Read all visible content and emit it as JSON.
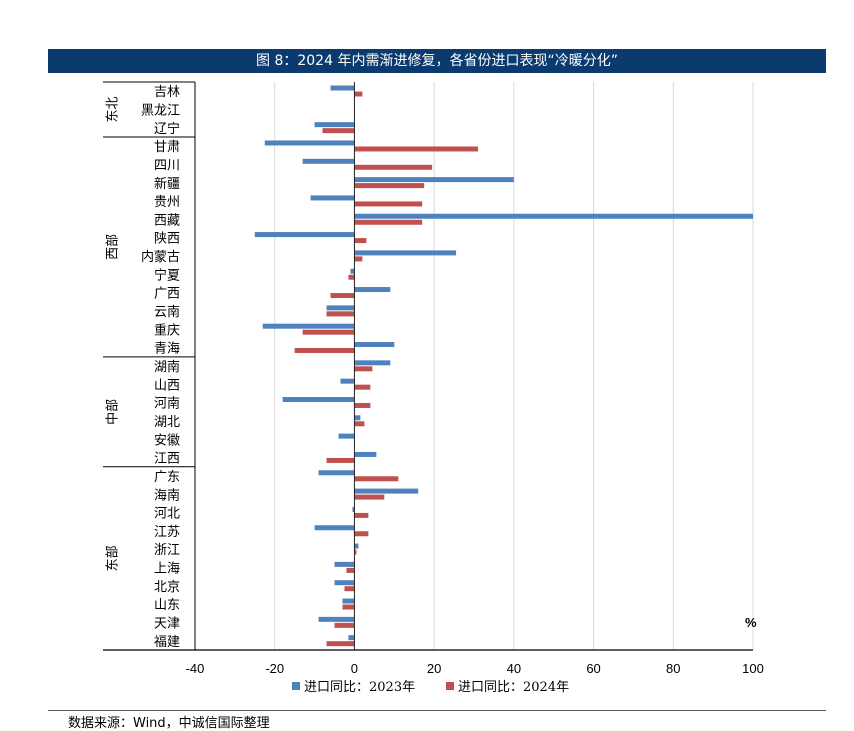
{
  "chart_data": {
    "type": "bar",
    "orientation": "horizontal",
    "title": "图 8：2024 年内需渐进修复，各省份进口表现“冷暖分化”",
    "unit_label": "%",
    "xlim": [
      -40,
      100
    ],
    "xticks": [
      "-40",
      "-20",
      "0",
      "20",
      "40",
      "60",
      "80",
      "100"
    ],
    "gridlines": true,
    "legend_position": "bottom",
    "series": [
      {
        "name": "进口同比：2023年",
        "color": "#4f81bd"
      },
      {
        "name": "进口同比：2024年",
        "color": "#c0504d"
      }
    ],
    "groups": [
      {
        "name": "东北",
        "provinces": [
          {
            "name": "吉林",
            "v2023": -6,
            "v2024": 2
          },
          {
            "name": "黑龙江",
            "v2023": 0,
            "v2024": 0
          },
          {
            "name": "辽宁",
            "v2023": -10,
            "v2024": -8
          }
        ]
      },
      {
        "name": "西部",
        "provinces": [
          {
            "name": "甘肃",
            "v2023": -22.5,
            "v2024": 31
          },
          {
            "name": "四川",
            "v2023": -13,
            "v2024": 19.5
          },
          {
            "name": "新疆",
            "v2023": 40,
            "v2024": 17.5
          },
          {
            "name": "贵州",
            "v2023": -11,
            "v2024": 17
          },
          {
            "name": "西藏",
            "v2023": 100,
            "v2024": 17
          },
          {
            "name": "陕西",
            "v2023": -25,
            "v2024": 3
          },
          {
            "name": "内蒙古",
            "v2023": 25.5,
            "v2024": 2
          },
          {
            "name": "宁夏",
            "v2023": -1,
            "v2024": -1.5
          },
          {
            "name": "广西",
            "v2023": 9,
            "v2024": -6
          },
          {
            "name": "云南",
            "v2023": -7,
            "v2024": -7
          },
          {
            "name": "重庆",
            "v2023": -23,
            "v2024": -13
          },
          {
            "name": "青海",
            "v2023": 10,
            "v2024": -15
          }
        ]
      },
      {
        "name": "中部",
        "provinces": [
          {
            "name": "湖南",
            "v2023": 9,
            "v2024": 4.5
          },
          {
            "name": "山西",
            "v2023": -3.5,
            "v2024": 4
          },
          {
            "name": "河南",
            "v2023": -18,
            "v2024": 4
          },
          {
            "name": "湖北",
            "v2023": 1.5,
            "v2024": 2.5
          },
          {
            "name": "安徽",
            "v2023": -4,
            "v2024": 0
          },
          {
            "name": "江西",
            "v2023": 5.5,
            "v2024": -7
          }
        ]
      },
      {
        "name": "东部",
        "provinces": [
          {
            "name": "广东",
            "v2023": -9,
            "v2024": 11
          },
          {
            "name": "海南",
            "v2023": 16,
            "v2024": 7.5
          },
          {
            "name": "河北",
            "v2023": -0.5,
            "v2024": 3.5
          },
          {
            "name": "江苏",
            "v2023": -10,
            "v2024": 3.5
          },
          {
            "name": "浙江",
            "v2023": 1,
            "v2024": 0.5
          },
          {
            "name": "上海",
            "v2023": -5,
            "v2024": -2
          },
          {
            "name": "北京",
            "v2023": -5,
            "v2024": -2.5
          },
          {
            "name": "山东",
            "v2023": -3,
            "v2024": -3
          },
          {
            "name": "天津",
            "v2023": -9,
            "v2024": -5
          },
          {
            "name": "福建",
            "v2023": -1.5,
            "v2024": -7
          }
        ]
      }
    ]
  },
  "source": "数据来源：Wind，中诚信国际整理"
}
